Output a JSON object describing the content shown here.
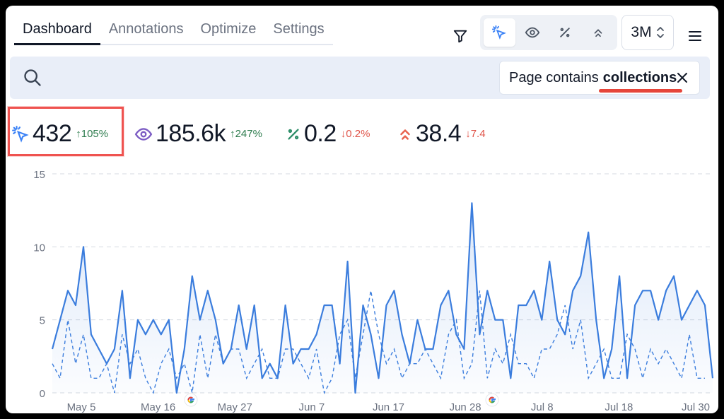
{
  "tabs": [
    {
      "label": "Dashboard",
      "active": true
    },
    {
      "label": "Annotations",
      "active": false
    },
    {
      "label": "Optimize",
      "active": false
    },
    {
      "label": "Settings",
      "active": false
    }
  ],
  "toolbar": {
    "metric_icons": [
      "cursor-click-icon",
      "eye-icon",
      "percent-icon",
      "chevrons-up-icon"
    ],
    "active_metric": "cursor-click-icon",
    "range_label": "3M"
  },
  "search": {
    "filter_prefix": "Page contains",
    "filter_term": "collections"
  },
  "stats": [
    {
      "icon": "cursor-click-icon",
      "value": "432",
      "change": "105%",
      "direction": "up",
      "color": "#3b82f6"
    },
    {
      "icon": "eye-icon",
      "value": "185.6k",
      "change": "247%",
      "direction": "up",
      "color": "#7c5cc4"
    },
    {
      "icon": "percent-icon",
      "value": "0.2",
      "change": "0.2%",
      "direction": "down",
      "color": "#2f8f6a"
    },
    {
      "icon": "chevrons-up-icon",
      "value": "38.4",
      "change": "7.4",
      "direction": "down",
      "color": "#e8634f"
    }
  ],
  "colors": {
    "series": "#3b7ddd",
    "up": "#2f7d4f",
    "down": "#e0554a",
    "highlight": "#ef5350"
  },
  "chart_data": {
    "type": "line",
    "ylim": [
      0,
      15
    ],
    "yticks": [
      0,
      5,
      10,
      15
    ],
    "xtick_labels": [
      "May 5",
      "May 16",
      "May 27",
      "Jun 7",
      "Jun 17",
      "Jun 28",
      "Jul 8",
      "Jul 18",
      "Jul 30"
    ],
    "annotations": [
      {
        "icon": "google-icon",
        "near": "May 16"
      },
      {
        "icon": "google-icon",
        "near": "Jun 28"
      }
    ],
    "series": [
      {
        "style": "solid-area",
        "values": [
          3,
          5,
          7,
          6,
          10,
          4,
          3,
          2,
          3,
          7,
          1,
          5,
          4,
          5,
          4,
          5,
          0,
          3,
          8,
          5,
          7,
          5,
          2,
          3,
          6,
          3,
          6,
          1,
          2,
          1,
          6,
          2,
          3,
          3,
          4,
          6,
          6,
          2,
          9,
          0,
          6,
          4,
          1,
          6,
          7,
          4,
          2,
          5,
          3,
          3,
          6,
          7,
          4,
          3,
          13,
          4,
          7,
          5,
          5,
          1,
          6,
          6,
          7,
          5,
          9,
          5,
          4,
          7,
          8,
          11,
          5,
          1,
          3,
          8,
          1,
          6,
          7,
          7,
          5,
          7,
          8,
          5,
          6,
          7,
          6,
          1
        ]
      },
      {
        "style": "dashed",
        "values": [
          2,
          1,
          5,
          2,
          4,
          1,
          1,
          2,
          0,
          4,
          2,
          3,
          1,
          0,
          2,
          3,
          1,
          2,
          0,
          4,
          1,
          4,
          2,
          3,
          3,
          1,
          2,
          3,
          1,
          1,
          3,
          3,
          2,
          1,
          3,
          0,
          1,
          4,
          5,
          1,
          4,
          7,
          4,
          2,
          3,
          1,
          2,
          2,
          3,
          2,
          1,
          4,
          5,
          1,
          2,
          7,
          1,
          3,
          2,
          4,
          2,
          2,
          1,
          3,
          3,
          4,
          6,
          3,
          5,
          1,
          2,
          3,
          1,
          1,
          4,
          3,
          1,
          3,
          2,
          3,
          2,
          1,
          4,
          1,
          1
        ]
      }
    ]
  }
}
